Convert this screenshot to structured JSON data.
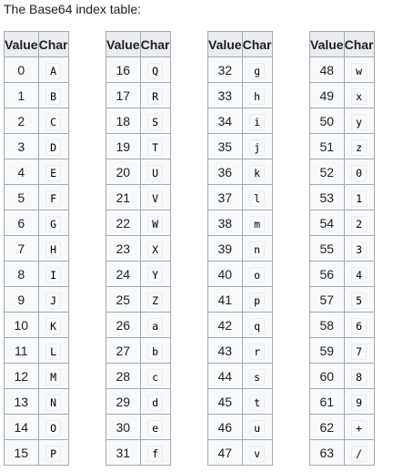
{
  "caption": "The Base64 index table:",
  "headers": {
    "value": "Value",
    "char": "Char"
  },
  "tables": [
    {
      "rows": [
        {
          "value": "0",
          "char": "A"
        },
        {
          "value": "1",
          "char": "B"
        },
        {
          "value": "2",
          "char": "C"
        },
        {
          "value": "3",
          "char": "D"
        },
        {
          "value": "4",
          "char": "E"
        },
        {
          "value": "5",
          "char": "F"
        },
        {
          "value": "6",
          "char": "G"
        },
        {
          "value": "7",
          "char": "H"
        },
        {
          "value": "8",
          "char": "I"
        },
        {
          "value": "9",
          "char": "J"
        },
        {
          "value": "10",
          "char": "K"
        },
        {
          "value": "11",
          "char": "L"
        },
        {
          "value": "12",
          "char": "M"
        },
        {
          "value": "13",
          "char": "N"
        },
        {
          "value": "14",
          "char": "O"
        },
        {
          "value": "15",
          "char": "P"
        }
      ]
    },
    {
      "rows": [
        {
          "value": "16",
          "char": "Q"
        },
        {
          "value": "17",
          "char": "R"
        },
        {
          "value": "18",
          "char": "S"
        },
        {
          "value": "19",
          "char": "T"
        },
        {
          "value": "20",
          "char": "U"
        },
        {
          "value": "21",
          "char": "V"
        },
        {
          "value": "22",
          "char": "W"
        },
        {
          "value": "23",
          "char": "X"
        },
        {
          "value": "24",
          "char": "Y"
        },
        {
          "value": "25",
          "char": "Z"
        },
        {
          "value": "26",
          "char": "a"
        },
        {
          "value": "27",
          "char": "b"
        },
        {
          "value": "28",
          "char": "c"
        },
        {
          "value": "29",
          "char": "d"
        },
        {
          "value": "30",
          "char": "e"
        },
        {
          "value": "31",
          "char": "f"
        }
      ]
    },
    {
      "rows": [
        {
          "value": "32",
          "char": "g"
        },
        {
          "value": "33",
          "char": "h"
        },
        {
          "value": "34",
          "char": "i"
        },
        {
          "value": "35",
          "char": "j"
        },
        {
          "value": "36",
          "char": "k"
        },
        {
          "value": "37",
          "char": "l"
        },
        {
          "value": "38",
          "char": "m"
        },
        {
          "value": "39",
          "char": "n"
        },
        {
          "value": "40",
          "char": "o"
        },
        {
          "value": "41",
          "char": "p"
        },
        {
          "value": "42",
          "char": "q"
        },
        {
          "value": "43",
          "char": "r"
        },
        {
          "value": "44",
          "char": "s"
        },
        {
          "value": "45",
          "char": "t"
        },
        {
          "value": "46",
          "char": "u"
        },
        {
          "value": "47",
          "char": "v"
        }
      ]
    },
    {
      "rows": [
        {
          "value": "48",
          "char": "w"
        },
        {
          "value": "49",
          "char": "x"
        },
        {
          "value": "50",
          "char": "y"
        },
        {
          "value": "51",
          "char": "z"
        },
        {
          "value": "52",
          "char": "0"
        },
        {
          "value": "53",
          "char": "1"
        },
        {
          "value": "54",
          "char": "2"
        },
        {
          "value": "55",
          "char": "3"
        },
        {
          "value": "56",
          "char": "4"
        },
        {
          "value": "57",
          "char": "5"
        },
        {
          "value": "58",
          "char": "6"
        },
        {
          "value": "59",
          "char": "7"
        },
        {
          "value": "60",
          "char": "8"
        },
        {
          "value": "61",
          "char": "9"
        },
        {
          "value": "62",
          "char": "+"
        },
        {
          "value": "63",
          "char": "/"
        }
      ]
    }
  ]
}
